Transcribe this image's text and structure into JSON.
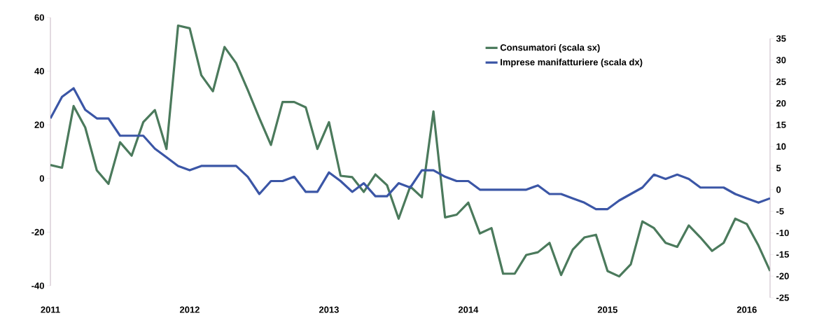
{
  "chart_data": {
    "type": "line",
    "x": [
      "2011-01",
      "2011-02",
      "2011-03",
      "2011-04",
      "2011-05",
      "2011-06",
      "2011-07",
      "2011-08",
      "2011-09",
      "2011-10",
      "2011-11",
      "2011-12",
      "2012-01",
      "2012-02",
      "2012-03",
      "2012-04",
      "2012-05",
      "2012-06",
      "2012-07",
      "2012-08",
      "2012-09",
      "2012-10",
      "2012-11",
      "2012-12",
      "2013-01",
      "2013-02",
      "2013-03",
      "2013-04",
      "2013-05",
      "2013-06",
      "2013-07",
      "2013-08",
      "2013-09",
      "2013-10",
      "2013-11",
      "2013-12",
      "2014-01",
      "2014-02",
      "2014-03",
      "2014-04",
      "2014-05",
      "2014-06",
      "2014-07",
      "2014-08",
      "2014-09",
      "2014-10",
      "2014-11",
      "2014-12",
      "2015-01",
      "2015-02",
      "2015-03",
      "2015-04",
      "2015-05",
      "2015-06",
      "2015-07",
      "2015-08",
      "2015-09",
      "2015-10",
      "2015-11",
      "2015-12",
      "2016-01",
      "2016-02",
      "2016-03"
    ],
    "series": [
      {
        "name": "Consumatori (scala sx)",
        "color": "#4b7a5c",
        "values": [
          5,
          4,
          27,
          19,
          3,
          -2,
          13.5,
          8.5,
          21,
          25.5,
          11,
          57,
          56,
          38.5,
          32.5,
          49,
          43,
          33,
          22.5,
          12.5,
          28.5,
          28.5,
          26.5,
          11,
          21,
          1,
          0.5,
          -5,
          1.5,
          -2.5,
          -15,
          -3,
          -7,
          25,
          -14.5,
          -13.5,
          -9,
          -20.5,
          -18.5,
          -35.5,
          -35.5,
          -28.5,
          -27.5,
          -24,
          -36,
          -26.5,
          -22,
          -21,
          -34.5,
          -36.5,
          -32,
          -16,
          -18.5,
          -24,
          -25.5,
          -17.5,
          -22,
          -27,
          -24,
          -15,
          -17,
          -25,
          -34.5
        ]
      },
      {
        "name": "Imprese manifatturiere (scala dx)",
        "color": "#3b56a6",
        "axis": "y2",
        "values": [
          16.5,
          21.5,
          23.5,
          18.5,
          16.5,
          16.5,
          12.5,
          12.5,
          12.5,
          9.5,
          7.5,
          5.5,
          4.5,
          5.5,
          5.5,
          5.5,
          5.5,
          3,
          -1,
          2,
          2,
          3,
          -0.5,
          -0.5,
          4,
          2,
          -0.5,
          1.5,
          -1.5,
          -1.5,
          1.5,
          0.5,
          4.5,
          4.5,
          3,
          2,
          2,
          0,
          0,
          0,
          0,
          0,
          1,
          -1,
          -1,
          -2,
          -3,
          -4.5,
          -4.5,
          -2.5,
          -1,
          0.5,
          3.5,
          2.5,
          3.5,
          2.5,
          0.5,
          0.5,
          0.5,
          -1,
          -2,
          -3,
          -2
        ]
      }
    ],
    "xlim": [
      "2011-01",
      "2016-03"
    ],
    "xticks": [
      {
        "value": "2011-01",
        "label": "2011"
      },
      {
        "value": "2012-01",
        "label": "2012"
      },
      {
        "value": "2013-01",
        "label": "2013"
      },
      {
        "value": "2014-01",
        "label": "2014"
      },
      {
        "value": "2015-01",
        "label": "2015"
      },
      {
        "value": "2016-01",
        "label": "2016"
      }
    ],
    "ylim": [
      -40,
      60
    ],
    "yticks": [
      -40,
      -20,
      0,
      20,
      40,
      60
    ],
    "y2lim": [
      -25,
      35
    ],
    "y2ticks": [
      -25,
      -20,
      -15,
      -10,
      -5,
      0,
      5,
      10,
      15,
      20,
      25,
      30,
      35
    ],
    "legend": "top right"
  }
}
